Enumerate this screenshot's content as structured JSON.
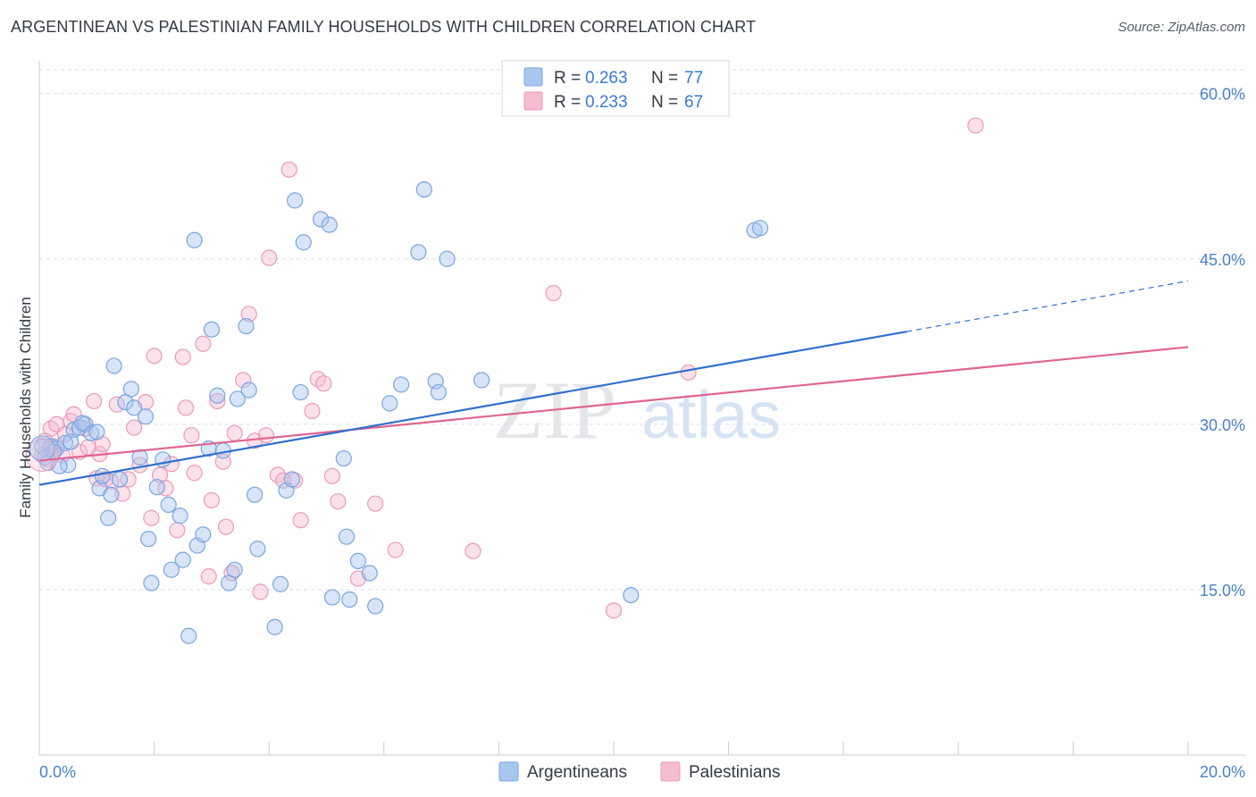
{
  "title": "ARGENTINEAN VS PALESTINIAN FAMILY HOUSEHOLDS WITH CHILDREN CORRELATION CHART",
  "source": "Source: ZipAtlas.com",
  "watermark": {
    "zip": "ZIP",
    "atlas": "atlas"
  },
  "colors": {
    "argentinean_fill": "#a9c6ef",
    "argentinean_stroke": "#7aa5e0",
    "argentinean_line": "#2f6fcf",
    "palestinian_fill": "#f6bcd0",
    "palestinian_stroke": "#ec9ab8",
    "palestinian_line": "#e0648f",
    "tick_text": "#4a7fcc",
    "grid": "#d9dde3"
  },
  "chart_data": {
    "type": "scatter",
    "title": "ARGENTINEAN VS PALESTINIAN FAMILY HOUSEHOLDS WITH CHILDREN CORRELATION CHART",
    "xlabel": "",
    "ylabel": "Family Households with Children",
    "xlim": [
      0,
      20
    ],
    "ylim": [
      0,
      62
    ],
    "x_tick_labels": [
      "0.0%",
      "20.0%"
    ],
    "y_ticks": [
      15,
      30,
      45,
      60
    ],
    "y_tick_labels": [
      "15.0%",
      "30.0%",
      "45.0%",
      "60.0%"
    ],
    "grid": true,
    "legend": [
      {
        "name": "Argentineans",
        "r_label": "R =",
        "r": "0.263",
        "n_label": "N =",
        "n": "77"
      },
      {
        "name": "Palestinians",
        "r_label": "R =",
        "r": "0.233",
        "n_label": "N =",
        "n": "67"
      }
    ],
    "series": [
      {
        "name": "Argentineans",
        "trend": {
          "x0": 0,
          "y0": 24.5,
          "x1": 15.1,
          "y1": 38.4,
          "dash_x1": 20,
          "dash_y1": 43.0
        },
        "points": [
          [
            0.05,
            28.0
          ],
          [
            0.1,
            27.0
          ],
          [
            0.15,
            26.5
          ],
          [
            0.2,
            28.0
          ],
          [
            0.3,
            27.8
          ],
          [
            0.45,
            28.3
          ],
          [
            0.5,
            26.3
          ],
          [
            0.6,
            29.5
          ],
          [
            0.7,
            29.7
          ],
          [
            0.8,
            30.0
          ],
          [
            0.9,
            29.2
          ],
          [
            1.0,
            29.3
          ],
          [
            1.05,
            24.2
          ],
          [
            1.1,
            25.3
          ],
          [
            1.2,
            21.5
          ],
          [
            1.25,
            23.6
          ],
          [
            1.3,
            35.3
          ],
          [
            1.4,
            25.0
          ],
          [
            1.5,
            32.0
          ],
          [
            1.6,
            33.2
          ],
          [
            1.65,
            31.5
          ],
          [
            1.75,
            27.0
          ],
          [
            1.85,
            30.7
          ],
          [
            1.9,
            19.6
          ],
          [
            1.95,
            15.6
          ],
          [
            2.05,
            24.3
          ],
          [
            2.15,
            26.8
          ],
          [
            2.25,
            22.7
          ],
          [
            2.3,
            16.8
          ],
          [
            2.45,
            21.7
          ],
          [
            2.5,
            17.7
          ],
          [
            2.6,
            10.8
          ],
          [
            2.7,
            46.7
          ],
          [
            2.75,
            19.0
          ],
          [
            2.85,
            20.0
          ],
          [
            2.95,
            27.8
          ],
          [
            3.0,
            38.6
          ],
          [
            3.1,
            32.6
          ],
          [
            3.2,
            27.6
          ],
          [
            3.3,
            15.6
          ],
          [
            3.4,
            16.8
          ],
          [
            3.45,
            32.3
          ],
          [
            3.6,
            38.9
          ],
          [
            3.65,
            33.1
          ],
          [
            3.75,
            23.6
          ],
          [
            3.8,
            18.7
          ],
          [
            4.1,
            11.6
          ],
          [
            4.2,
            15.5
          ],
          [
            4.3,
            24.0
          ],
          [
            4.4,
            25.0
          ],
          [
            4.45,
            50.3
          ],
          [
            4.55,
            32.9
          ],
          [
            4.6,
            46.5
          ],
          [
            4.9,
            48.6
          ],
          [
            5.05,
            48.1
          ],
          [
            5.1,
            14.3
          ],
          [
            5.3,
            26.9
          ],
          [
            5.35,
            19.8
          ],
          [
            5.4,
            14.1
          ],
          [
            5.55,
            17.6
          ],
          [
            5.75,
            16.5
          ],
          [
            5.85,
            13.5
          ],
          [
            6.1,
            31.9
          ],
          [
            6.3,
            33.6
          ],
          [
            6.6,
            45.6
          ],
          [
            6.7,
            51.3
          ],
          [
            6.9,
            33.9
          ],
          [
            6.95,
            32.9
          ],
          [
            7.1,
            45.0
          ],
          [
            7.7,
            34.0
          ],
          [
            10.3,
            14.5
          ],
          [
            12.45,
            47.6
          ],
          [
            12.55,
            47.8
          ],
          [
            0.25,
            27.5
          ],
          [
            0.55,
            28.4
          ],
          [
            0.35,
            26.2
          ],
          [
            0.75,
            30.1
          ]
        ]
      },
      {
        "name": "Palestinians",
        "trend": {
          "x0": 0,
          "y0": 26.7,
          "x1": 20,
          "y1": 37.0
        },
        "points": [
          [
            0.05,
            27.2
          ],
          [
            0.1,
            28.5
          ],
          [
            0.2,
            29.6
          ],
          [
            0.25,
            28.0
          ],
          [
            0.3,
            30.0
          ],
          [
            0.4,
            27.2
          ],
          [
            0.55,
            30.3
          ],
          [
            0.6,
            30.9
          ],
          [
            0.7,
            27.5
          ],
          [
            0.8,
            29.6
          ],
          [
            0.95,
            32.1
          ],
          [
            1.0,
            25.1
          ],
          [
            1.05,
            27.3
          ],
          [
            1.1,
            28.2
          ],
          [
            1.15,
            25.0
          ],
          [
            1.25,
            24.8
          ],
          [
            1.35,
            31.8
          ],
          [
            1.45,
            23.7
          ],
          [
            1.55,
            25.0
          ],
          [
            1.65,
            29.7
          ],
          [
            1.75,
            26.3
          ],
          [
            1.85,
            32.0
          ],
          [
            1.95,
            21.5
          ],
          [
            2.0,
            36.2
          ],
          [
            2.1,
            25.4
          ],
          [
            2.2,
            24.2
          ],
          [
            2.3,
            26.4
          ],
          [
            2.4,
            20.4
          ],
          [
            2.5,
            36.1
          ],
          [
            2.55,
            31.5
          ],
          [
            2.65,
            29.0
          ],
          [
            2.7,
            25.6
          ],
          [
            2.85,
            37.3
          ],
          [
            2.95,
            16.2
          ],
          [
            3.0,
            23.1
          ],
          [
            3.1,
            32.1
          ],
          [
            3.2,
            26.6
          ],
          [
            3.25,
            20.7
          ],
          [
            3.35,
            16.5
          ],
          [
            3.4,
            29.2
          ],
          [
            3.55,
            34.0
          ],
          [
            3.65,
            40.0
          ],
          [
            3.75,
            28.5
          ],
          [
            3.85,
            14.8
          ],
          [
            3.95,
            29.0
          ],
          [
            4.0,
            45.1
          ],
          [
            4.15,
            25.4
          ],
          [
            4.25,
            24.9
          ],
          [
            4.35,
            53.1
          ],
          [
            4.45,
            24.9
          ],
          [
            4.55,
            21.3
          ],
          [
            4.75,
            31.2
          ],
          [
            4.85,
            34.1
          ],
          [
            4.95,
            33.7
          ],
          [
            5.1,
            25.3
          ],
          [
            5.2,
            23.0
          ],
          [
            5.55,
            16.0
          ],
          [
            5.85,
            22.8
          ],
          [
            6.2,
            18.6
          ],
          [
            7.55,
            18.5
          ],
          [
            8.95,
            41.9
          ],
          [
            10.0,
            13.1
          ],
          [
            11.3,
            34.7
          ],
          [
            16.3,
            57.1
          ],
          [
            0.15,
            26.8
          ],
          [
            0.45,
            29.1
          ],
          [
            0.85,
            27.9
          ]
        ]
      }
    ]
  }
}
